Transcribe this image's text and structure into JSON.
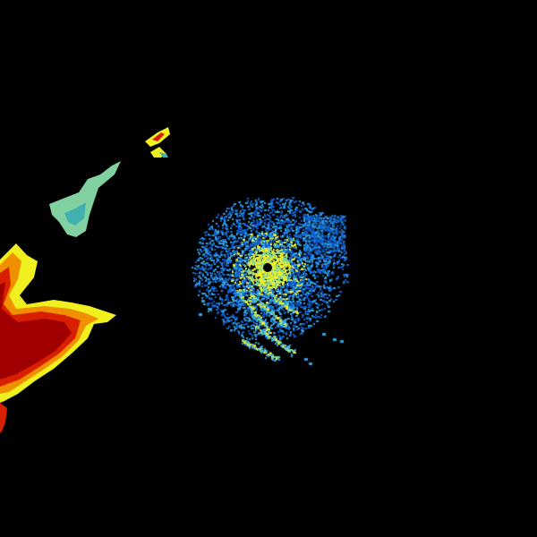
{
  "image": {
    "background": "#000000",
    "palette": {
      "dark_red": "#a00000",
      "red": "#d82000",
      "orange": "#f09000",
      "yellow": "#f0f020",
      "light_green": "#80d0a0",
      "teal": "#40b0b0",
      "light_blue": "#30a0e0",
      "blue": "#1060d0"
    }
  }
}
